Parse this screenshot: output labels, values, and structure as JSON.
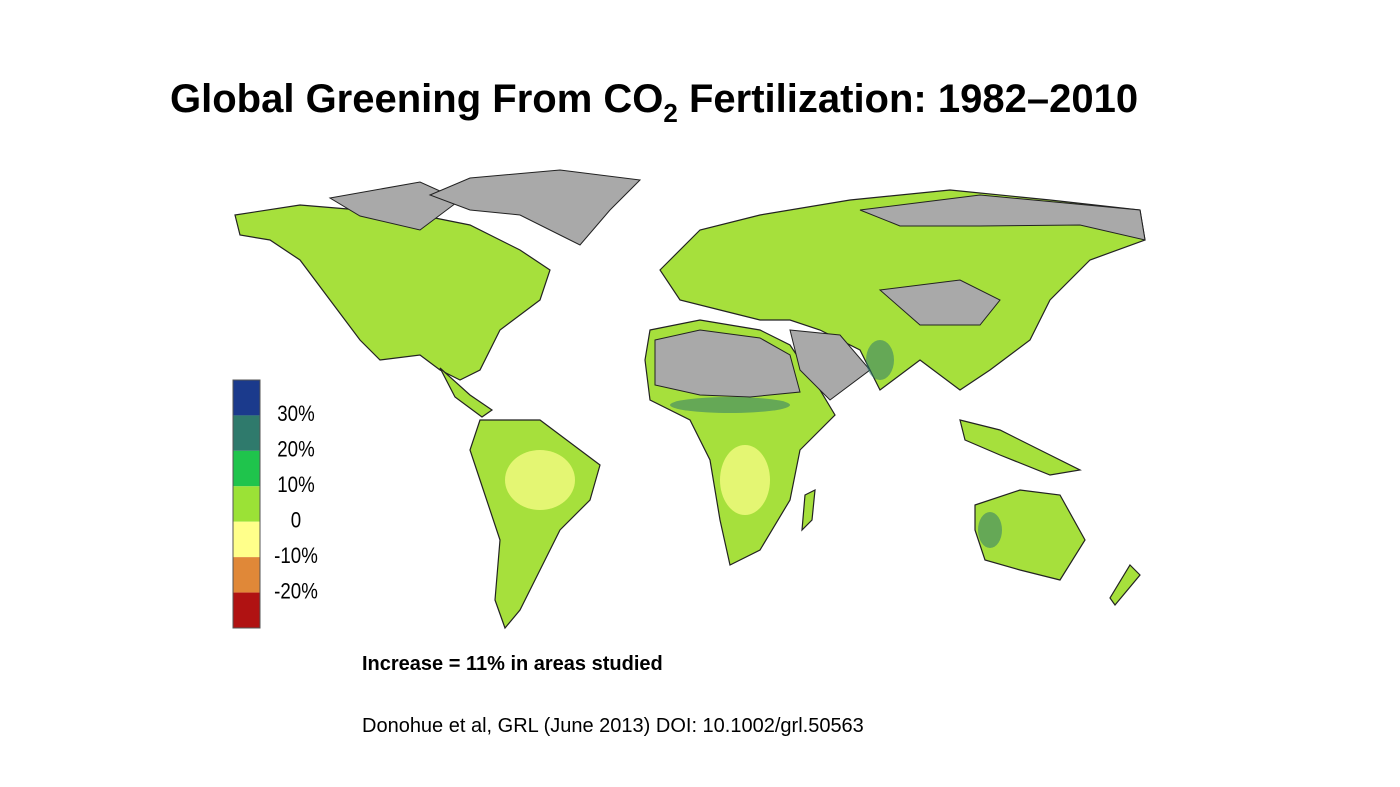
{
  "slide": {
    "title": {
      "main": "Global Greening From CO",
      "subscript": "2",
      "rest": " Fertilization: 1982–2010"
    },
    "legend": {
      "colors": [
        "#1b3a8c",
        "#2f7a6c",
        "#1fc44c",
        "#9be236",
        "#ffff8a",
        "#e08838",
        "#b01212"
      ],
      "labels": [
        "30%",
        "20%",
        "10%",
        "0",
        "-10%",
        "-20%"
      ]
    },
    "caption": "Increase = 11% in areas studied",
    "citation": "Donohue et al, GRL (June 2013) DOI: 10.1002/grl.50563"
  }
}
